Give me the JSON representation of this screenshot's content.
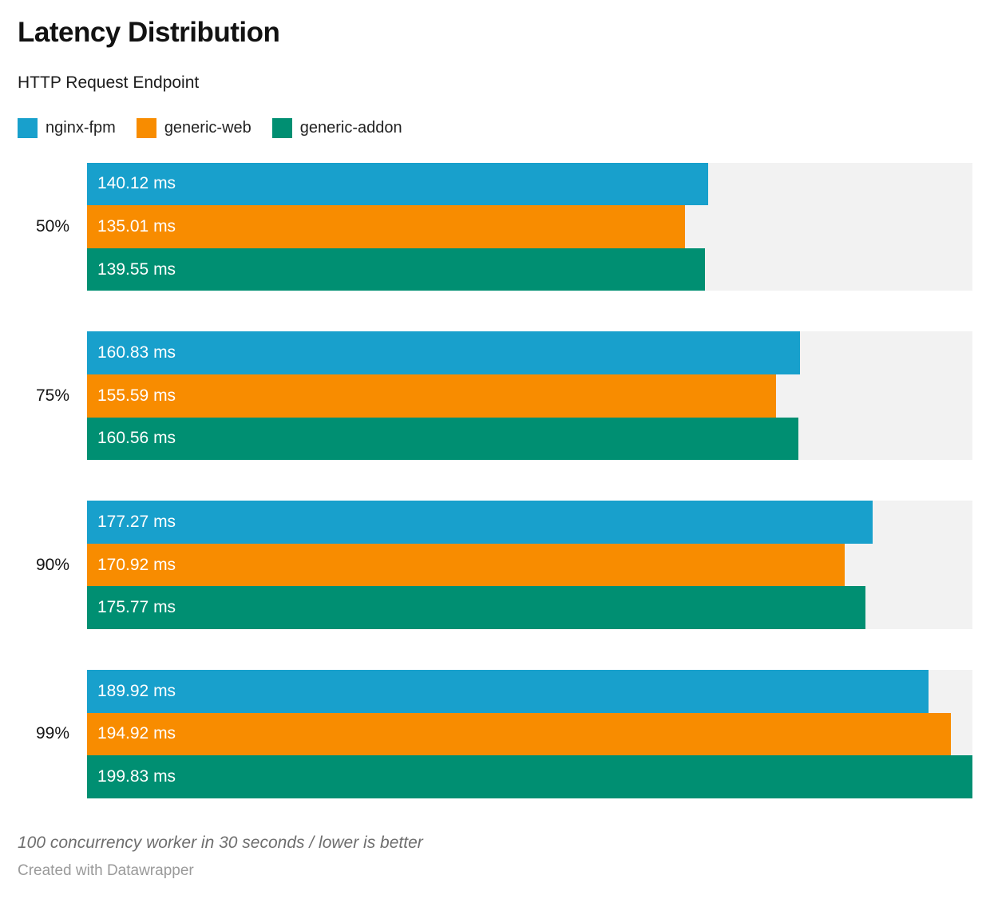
{
  "header": {
    "title": "Latency Distribution",
    "subtitle": "HTTP Request Endpoint"
  },
  "chart_data": {
    "type": "bar",
    "orientation": "horizontal",
    "title": "Latency Distribution",
    "subtitle": "HTTP Request Endpoint",
    "unit": "ms",
    "xlim": [
      0,
      199.83
    ],
    "grid": false,
    "legend_position": "top",
    "track_color": "#f2f2f2",
    "categories": [
      "50%",
      "75%",
      "90%",
      "99%"
    ],
    "series": [
      {
        "name": "nginx-fpm",
        "color": "#18a0cc",
        "values": [
          140.12,
          160.83,
          177.27,
          189.92
        ]
      },
      {
        "name": "generic-web",
        "color": "#f88c00",
        "values": [
          135.01,
          155.59,
          170.92,
          194.92
        ]
      },
      {
        "name": "generic-addon",
        "color": "#008f72",
        "values": [
          139.55,
          160.56,
          175.77,
          199.83
        ]
      }
    ]
  },
  "footer": {
    "note": "100 concurrency worker in 30 seconds / lower is better",
    "credit": "Created with Datawrapper"
  }
}
